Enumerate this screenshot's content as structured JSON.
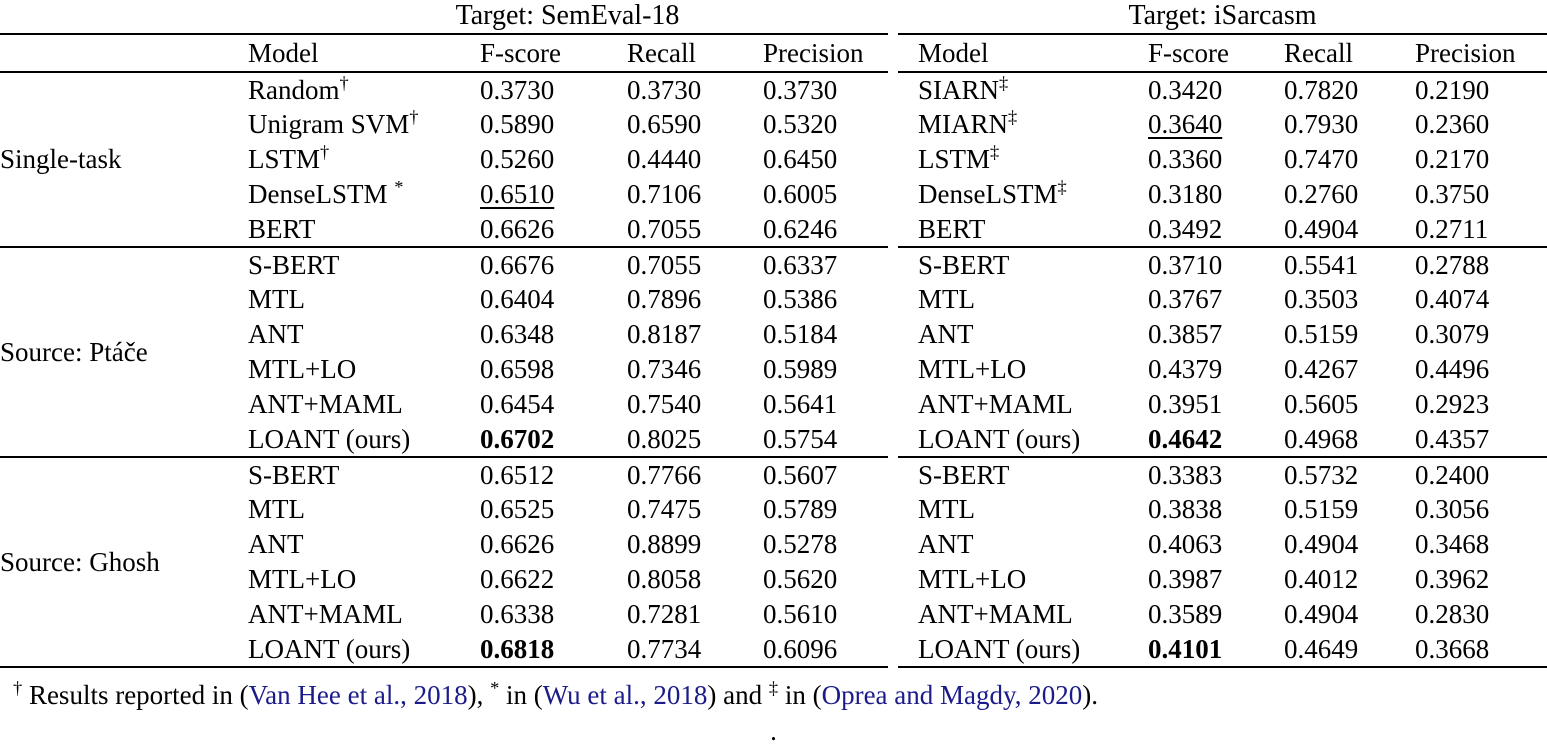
{
  "caption_dot": ".",
  "colors": {
    "text": "#000000",
    "citation": "#1b1b8a",
    "background": "#ffffff"
  },
  "tables": [
    {
      "title": "Target: SemEval-18",
      "columns": [
        "Model",
        "F-score",
        "Recall",
        "Precision"
      ],
      "groups": [
        {
          "label": "Single-task",
          "rows": [
            {
              "model": "Random",
              "sup": "†",
              "f": "0.3730",
              "r": "0.3730",
              "p": "0.3730"
            },
            {
              "model": "Unigram SVM",
              "sup": "†",
              "f": "0.5890",
              "r": "0.6590",
              "p": "0.5320"
            },
            {
              "model": "LSTM",
              "sup": "†",
              "f": "0.5260",
              "r": "0.4440",
              "p": "0.6450"
            },
            {
              "model": "DenseLSTM ",
              "sup": "*",
              "f": "0.6510",
              "r": "0.7106",
              "p": "0.6005",
              "styles": {
                "f": "underline"
              }
            },
            {
              "model": "BERT",
              "f": "0.6626",
              "r": "0.7055",
              "p": "0.6246"
            }
          ]
        },
        {
          "label": "Source: Ptáče",
          "rows": [
            {
              "model": "S-BERT",
              "f": "0.6676",
              "r": "0.7055",
              "p": "0.6337"
            },
            {
              "model": "MTL",
              "f": "0.6404",
              "r": "0.7896",
              "p": "0.5386"
            },
            {
              "model": "ANT",
              "f": "0.6348",
              "r": "0.8187",
              "p": "0.5184"
            },
            {
              "model": "MTL+LO",
              "f": "0.6598",
              "r": "0.7346",
              "p": "0.5989"
            },
            {
              "model": "ANT+MAML",
              "f": "0.6454",
              "r": "0.7540",
              "p": "0.5641"
            },
            {
              "model": "LOANT (ours)",
              "f": "0.6702",
              "r": "0.8025",
              "p": "0.5754",
              "styles": {
                "f": "bold"
              }
            }
          ]
        },
        {
          "label": "Source: Ghosh",
          "rows": [
            {
              "model": "S-BERT",
              "f": "0.6512",
              "r": "0.7766",
              "p": "0.5607"
            },
            {
              "model": "MTL",
              "f": "0.6525",
              "r": "0.7475",
              "p": "0.5789"
            },
            {
              "model": "ANT",
              "f": "0.6626",
              "r": "0.8899",
              "p": "0.5278"
            },
            {
              "model": "MTL+LO",
              "f": "0.6622",
              "r": "0.8058",
              "p": "0.5620"
            },
            {
              "model": "ANT+MAML",
              "f": "0.6338",
              "r": "0.7281",
              "p": "0.5610"
            },
            {
              "model": "LOANT (ours)",
              "f": "0.6818",
              "r": "0.7734",
              "p": "0.6096",
              "styles": {
                "f": "bold"
              }
            }
          ]
        }
      ]
    },
    {
      "title": "Target: iSarcasm",
      "columns": [
        "Model",
        "F-score",
        "Recall",
        "Precision"
      ],
      "groups": [
        {
          "rows": [
            {
              "model": "SIARN",
              "sup": "‡",
              "f": "0.3420",
              "r": "0.7820",
              "p": "0.2190"
            },
            {
              "model": "MIARN",
              "sup": "‡",
              "f": "0.3640",
              "r": "0.7930",
              "p": "0.2360",
              "styles": {
                "f": "underline"
              }
            },
            {
              "model": "LSTM",
              "sup": "‡",
              "f": "0.3360",
              "r": "0.7470",
              "p": "0.2170"
            },
            {
              "model": "DenseLSTM",
              "sup": "‡",
              "f": "0.3180",
              "r": "0.2760",
              "p": "0.3750"
            },
            {
              "model": "BERT",
              "f": "0.3492",
              "r": "0.4904",
              "p": "0.2711"
            }
          ]
        },
        {
          "rows": [
            {
              "model": "S-BERT",
              "f": "0.3710",
              "r": "0.5541",
              "p": "0.2788"
            },
            {
              "model": "MTL",
              "f": "0.3767",
              "r": "0.3503",
              "p": "0.4074"
            },
            {
              "model": "ANT",
              "f": "0.3857",
              "r": "0.5159",
              "p": "0.3079"
            },
            {
              "model": "MTL+LO",
              "f": "0.4379",
              "r": "0.4267",
              "p": "0.4496"
            },
            {
              "model": "ANT+MAML",
              "f": "0.3951",
              "r": "0.5605",
              "p": "0.2923"
            },
            {
              "model": "LOANT (ours)",
              "f": "0.4642",
              "r": "0.4968",
              "p": "0.4357",
              "styles": {
                "f": "bold"
              }
            }
          ]
        },
        {
          "rows": [
            {
              "model": "S-BERT",
              "f": "0.3383",
              "r": "0.5732",
              "p": "0.2400"
            },
            {
              "model": "MTL",
              "f": "0.3838",
              "r": "0.5159",
              "p": "0.3056"
            },
            {
              "model": "ANT",
              "f": "0.4063",
              "r": "0.4904",
              "p": "0.3468"
            },
            {
              "model": "MTL+LO",
              "f": "0.3987",
              "r": "0.4012",
              "p": "0.3962"
            },
            {
              "model": "ANT+MAML",
              "f": "0.3589",
              "r": "0.4904",
              "p": "0.2830"
            },
            {
              "model": "LOANT (ours)",
              "f": "0.4101",
              "r": "0.4649",
              "p": "0.3668",
              "styles": {
                "f": "bold"
              }
            }
          ]
        }
      ]
    }
  ],
  "footnote": {
    "parts": [
      {
        "style": "sup",
        "text": "†"
      },
      {
        "style": "plain",
        "text": " Results reported in ("
      },
      {
        "style": "cite",
        "text": "Van Hee et al., 2018"
      },
      {
        "style": "plain",
        "text": "), "
      },
      {
        "style": "sup",
        "text": "*"
      },
      {
        "style": "plain",
        "text": " in ("
      },
      {
        "style": "cite",
        "text": "Wu et al., 2018"
      },
      {
        "style": "plain",
        "text": ") and "
      },
      {
        "style": "sup",
        "text": "‡"
      },
      {
        "style": "plain",
        "text": " in ("
      },
      {
        "style": "cite",
        "text": "Oprea and Magdy, 2020"
      },
      {
        "style": "plain",
        "text": ")."
      }
    ]
  }
}
